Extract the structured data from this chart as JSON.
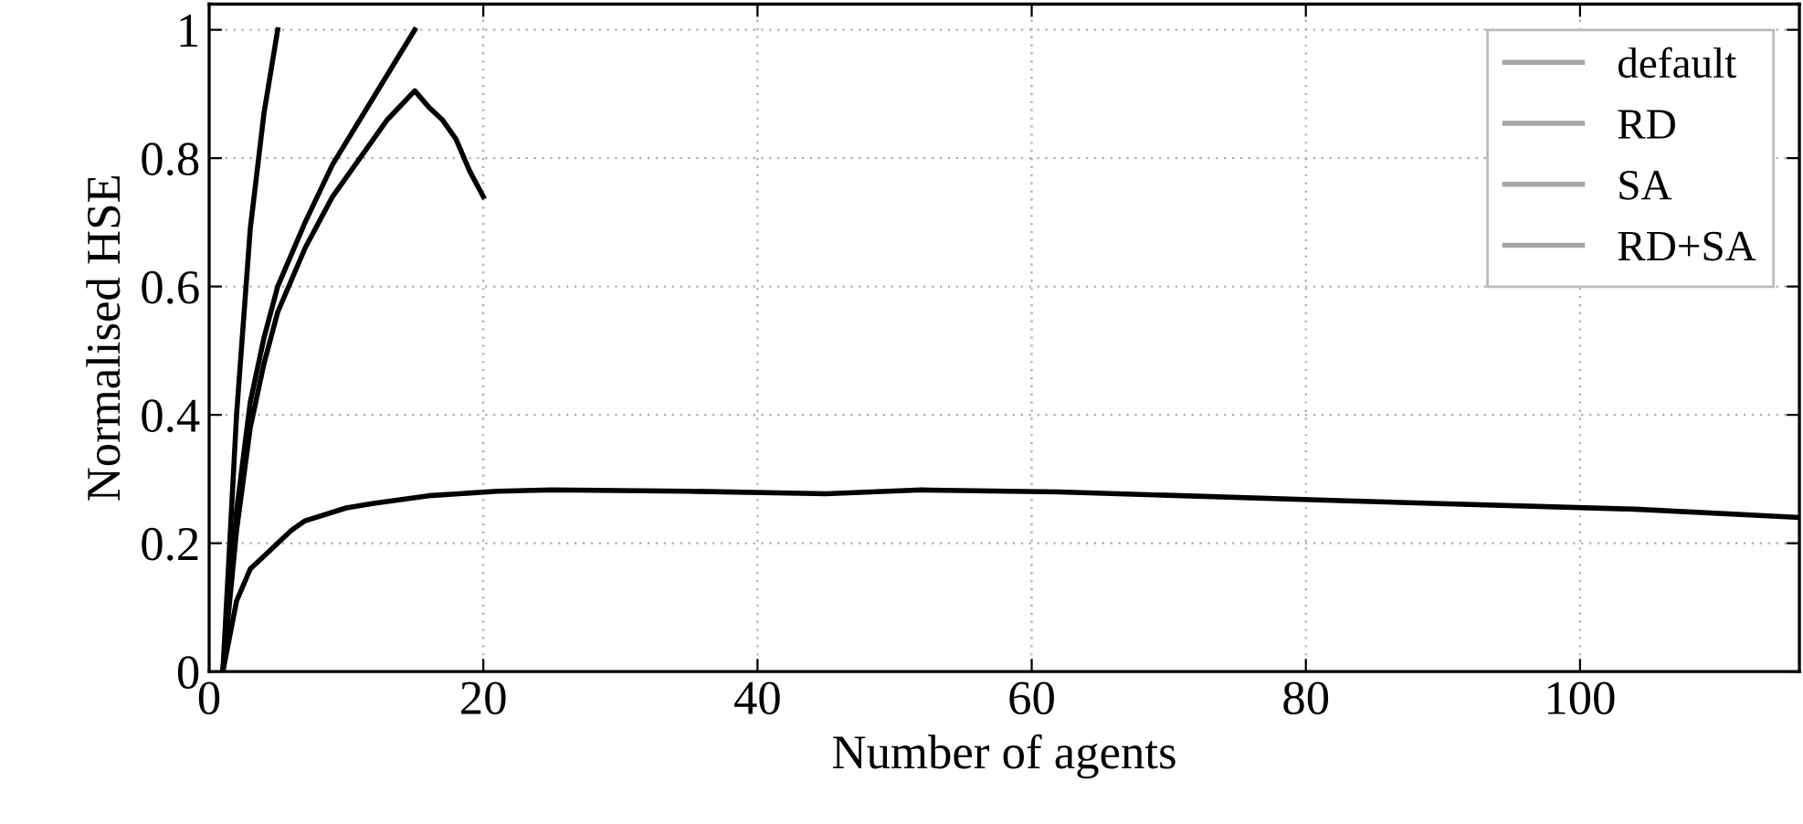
{
  "chart_data": {
    "type": "line",
    "xlabel": "Number of agents",
    "ylabel": "Normalised HSE",
    "xlim": [
      0,
      116
    ],
    "xticks": [
      0,
      20,
      40,
      60,
      80,
      100
    ],
    "ylim": [
      0,
      1.04
    ],
    "yticks": [
      0,
      0.2,
      0.4,
      0.6,
      0.8,
      1
    ],
    "grid": true,
    "legend": "top right",
    "line_style": "solid",
    "marker": "none",
    "series": [
      {
        "name": "default",
        "color": "#000000",
        "x": [
          1,
          2,
          3,
          4,
          6,
          7,
          10,
          12,
          16,
          21,
          25,
          35,
          45,
          52,
          62,
          83,
          104,
          116
        ],
        "values": [
          0,
          0.11,
          0.16,
          0.18,
          0.22,
          0.235,
          0.255,
          0.262,
          0.274,
          0.281,
          0.283,
          0.281,
          0.277,
          0.283,
          0.28,
          0.266,
          0.253,
          0.24
        ]
      },
      {
        "name": "RD",
        "color": "#000000",
        "x": [
          1,
          2,
          3,
          4,
          5,
          7,
          9,
          11,
          13,
          15,
          16,
          17,
          18,
          19,
          20
        ],
        "values": [
          0,
          0.22,
          0.38,
          0.48,
          0.56,
          0.66,
          0.74,
          0.8,
          0.86,
          0.905,
          0.88,
          0.86,
          0.83,
          0.78,
          0.74
        ]
      },
      {
        "name": "SA",
        "color": "#000000",
        "x": [
          1,
          2,
          3,
          4,
          5,
          7,
          9,
          11,
          13,
          15
        ],
        "values": [
          0,
          0.25,
          0.42,
          0.52,
          0.6,
          0.7,
          0.79,
          0.86,
          0.93,
          1.0
        ]
      },
      {
        "name": "RD+SA",
        "color": "#000000",
        "x": [
          1,
          2,
          3,
          4,
          5
        ],
        "values": [
          0,
          0.4,
          0.69,
          0.87,
          1.0
        ]
      }
    ]
  }
}
